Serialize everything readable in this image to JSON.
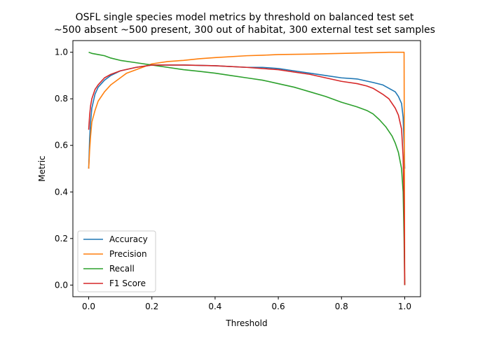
{
  "chart_data": {
    "type": "line",
    "title": "OSFL single species model metrics by threshold on balanced test set",
    "subtitle": "~500 absent ~500 present, 300 out of habitat, 300 external test set samples",
    "xlabel": "Threshold",
    "ylabel": "Metric",
    "xlim": [
      -0.05,
      1.05
    ],
    "ylim": [
      -0.05,
      1.05
    ],
    "xticks": [
      "0.0",
      "0.2",
      "0.4",
      "0.6",
      "0.8",
      "1.0"
    ],
    "yticks": [
      "0.0",
      "0.2",
      "0.4",
      "0.6",
      "0.8",
      "1.0"
    ],
    "grid": false,
    "legend_position": "lower-left",
    "series": [
      {
        "name": "Accuracy",
        "color": "#1f77b4",
        "points": [
          [
            0,
            0.5
          ],
          [
            0.003,
            0.63
          ],
          [
            0.006,
            0.7
          ],
          [
            0.01,
            0.76
          ],
          [
            0.02,
            0.82
          ],
          [
            0.03,
            0.85
          ],
          [
            0.05,
            0.88
          ],
          [
            0.07,
            0.9
          ],
          [
            0.1,
            0.92
          ],
          [
            0.15,
            0.935
          ],
          [
            0.2,
            0.945
          ],
          [
            0.3,
            0.945
          ],
          [
            0.4,
            0.942
          ],
          [
            0.5,
            0.935
          ],
          [
            0.55,
            0.935
          ],
          [
            0.6,
            0.93
          ],
          [
            0.65,
            0.92
          ],
          [
            0.7,
            0.91
          ],
          [
            0.75,
            0.9
          ],
          [
            0.8,
            0.89
          ],
          [
            0.85,
            0.885
          ],
          [
            0.9,
            0.87
          ],
          [
            0.93,
            0.86
          ],
          [
            0.95,
            0.845
          ],
          [
            0.97,
            0.83
          ],
          [
            0.98,
            0.81
          ],
          [
            0.99,
            0.78
          ],
          [
            0.995,
            0.72
          ],
          [
            0.998,
            0.6
          ],
          [
            1.0,
            0.5
          ]
        ]
      },
      {
        "name": "Precision",
        "color": "#ff7f0e",
        "points": [
          [
            0,
            0.5
          ],
          [
            0.003,
            0.58
          ],
          [
            0.006,
            0.64
          ],
          [
            0.01,
            0.7
          ],
          [
            0.02,
            0.75
          ],
          [
            0.03,
            0.79
          ],
          [
            0.05,
            0.83
          ],
          [
            0.07,
            0.86
          ],
          [
            0.1,
            0.89
          ],
          [
            0.12,
            0.91
          ],
          [
            0.15,
            0.925
          ],
          [
            0.2,
            0.95
          ],
          [
            0.25,
            0.96
          ],
          [
            0.3,
            0.965
          ],
          [
            0.35,
            0.972
          ],
          [
            0.4,
            0.977
          ],
          [
            0.5,
            0.985
          ],
          [
            0.55,
            0.987
          ],
          [
            0.6,
            0.99
          ],
          [
            0.7,
            0.992
          ],
          [
            0.8,
            0.995
          ],
          [
            0.9,
            0.998
          ],
          [
            0.95,
            1.0
          ],
          [
            0.998,
            1.0
          ],
          [
            1.0,
            0.0
          ]
        ]
      },
      {
        "name": "Recall",
        "color": "#2ca02c",
        "points": [
          [
            0,
            1.0
          ],
          [
            0.01,
            0.995
          ],
          [
            0.03,
            0.99
          ],
          [
            0.05,
            0.985
          ],
          [
            0.07,
            0.975
          ],
          [
            0.1,
            0.965
          ],
          [
            0.15,
            0.955
          ],
          [
            0.2,
            0.945
          ],
          [
            0.25,
            0.935
          ],
          [
            0.3,
            0.925
          ],
          [
            0.35,
            0.918
          ],
          [
            0.4,
            0.91
          ],
          [
            0.45,
            0.9
          ],
          [
            0.5,
            0.89
          ],
          [
            0.55,
            0.88
          ],
          [
            0.6,
            0.865
          ],
          [
            0.65,
            0.85
          ],
          [
            0.7,
            0.83
          ],
          [
            0.75,
            0.81
          ],
          [
            0.8,
            0.785
          ],
          [
            0.85,
            0.765
          ],
          [
            0.88,
            0.75
          ],
          [
            0.9,
            0.735
          ],
          [
            0.92,
            0.71
          ],
          [
            0.94,
            0.68
          ],
          [
            0.96,
            0.64
          ],
          [
            0.97,
            0.61
          ],
          [
            0.98,
            0.57
          ],
          [
            0.99,
            0.5
          ],
          [
            0.995,
            0.4
          ],
          [
            0.998,
            0.2
          ],
          [
            1.0,
            0.0
          ]
        ]
      },
      {
        "name": "F1 Score",
        "color": "#d62728",
        "points": [
          [
            0,
            0.667
          ],
          [
            0.003,
            0.73
          ],
          [
            0.006,
            0.77
          ],
          [
            0.01,
            0.8
          ],
          [
            0.02,
            0.84
          ],
          [
            0.03,
            0.86
          ],
          [
            0.05,
            0.89
          ],
          [
            0.07,
            0.905
          ],
          [
            0.1,
            0.92
          ],
          [
            0.15,
            0.935
          ],
          [
            0.2,
            0.945
          ],
          [
            0.3,
            0.945
          ],
          [
            0.4,
            0.942
          ],
          [
            0.5,
            0.935
          ],
          [
            0.55,
            0.93
          ],
          [
            0.6,
            0.925
          ],
          [
            0.65,
            0.915
          ],
          [
            0.7,
            0.905
          ],
          [
            0.75,
            0.89
          ],
          [
            0.8,
            0.875
          ],
          [
            0.85,
            0.865
          ],
          [
            0.88,
            0.855
          ],
          [
            0.9,
            0.845
          ],
          [
            0.93,
            0.82
          ],
          [
            0.95,
            0.8
          ],
          [
            0.97,
            0.76
          ],
          [
            0.98,
            0.73
          ],
          [
            0.99,
            0.67
          ],
          [
            0.995,
            0.55
          ],
          [
            0.998,
            0.35
          ],
          [
            1.0,
            0.0
          ]
        ]
      }
    ]
  }
}
